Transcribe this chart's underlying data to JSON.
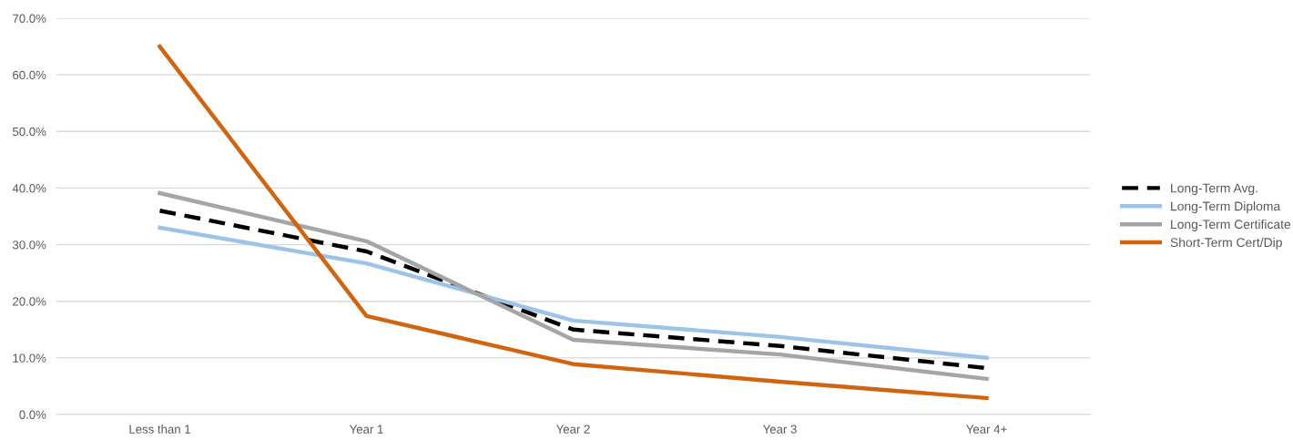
{
  "chart_data": {
    "type": "line",
    "categories": [
      "Less than 1",
      "Year 1",
      "Year 2",
      "Year 3",
      "Year 4+"
    ],
    "series": [
      {
        "name": "Long-Term Avg.",
        "color": "#000000",
        "line_style": "dashed",
        "values": [
          36.0,
          28.8,
          15.0,
          12.1,
          8.2
        ]
      },
      {
        "name": "Long-Term Diploma",
        "color": "#9dc3e6",
        "line_style": "solid",
        "values": [
          33.0,
          26.7,
          16.6,
          13.7,
          10.0
        ]
      },
      {
        "name": "Long-Term Certificate",
        "color": "#a5a5a5",
        "line_style": "solid",
        "values": [
          39.1,
          30.6,
          13.2,
          10.6,
          6.3
        ]
      },
      {
        "name": "Short-Term Cert/Dip",
        "color": "#d0640f",
        "line_style": "solid",
        "values": [
          65.0,
          17.4,
          8.9,
          5.8,
          2.9
        ]
      }
    ],
    "ylim": [
      0,
      70
    ],
    "yticks": [
      {
        "value": 0,
        "label": "0.0%"
      },
      {
        "value": 10,
        "label": "10.0%"
      },
      {
        "value": 20,
        "label": "20.0%"
      },
      {
        "value": 30,
        "label": "30.0%"
      },
      {
        "value": 40,
        "label": "40.0%"
      },
      {
        "value": 50,
        "label": "50.0%"
      },
      {
        "value": 60,
        "label": "60.0%"
      },
      {
        "value": 70,
        "label": "70.0%"
      }
    ],
    "grid": "y",
    "legend": "right",
    "marker": "none"
  }
}
